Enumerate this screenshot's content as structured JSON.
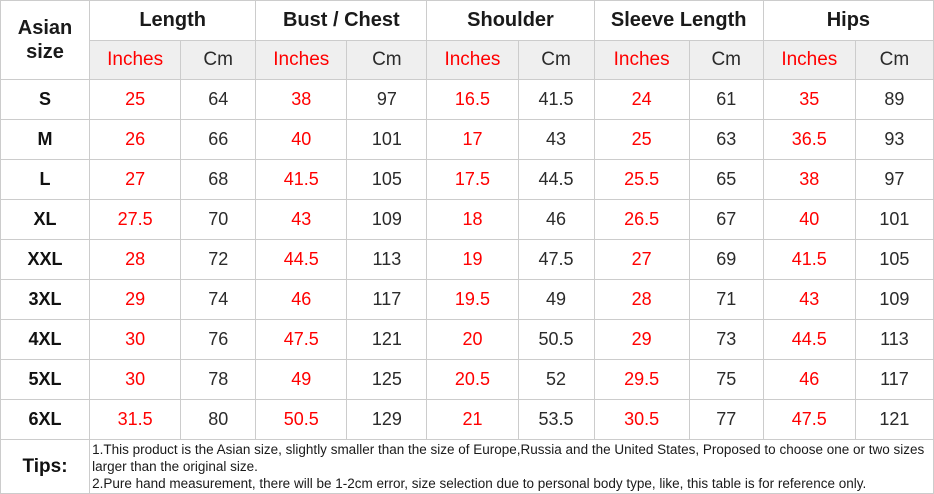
{
  "colors": {
    "accent_red": "#ff0000",
    "header_shade": "#efefef",
    "border": "#cccccc",
    "text_dark": "#1a1a1a"
  },
  "header": {
    "corner": "Asian size",
    "groups": [
      {
        "label": "Length"
      },
      {
        "label": "Bust / Chest"
      },
      {
        "label": "Shoulder"
      },
      {
        "label": "Sleeve Length"
      },
      {
        "label": "Hips"
      }
    ],
    "unit_inches": "Inches",
    "unit_cm": "Cm"
  },
  "rows": [
    {
      "size": "S",
      "values": [
        "25",
        "64",
        "38",
        "97",
        "16.5",
        "41.5",
        "24",
        "61",
        "35",
        "89"
      ]
    },
    {
      "size": "M",
      "values": [
        "26",
        "66",
        "40",
        "101",
        "17",
        "43",
        "25",
        "63",
        "36.5",
        "93"
      ]
    },
    {
      "size": "L",
      "values": [
        "27",
        "68",
        "41.5",
        "105",
        "17.5",
        "44.5",
        "25.5",
        "65",
        "38",
        "97"
      ]
    },
    {
      "size": "XL",
      "values": [
        "27.5",
        "70",
        "43",
        "109",
        "18",
        "46",
        "26.5",
        "67",
        "40",
        "101"
      ]
    },
    {
      "size": "XXL",
      "values": [
        "28",
        "72",
        "44.5",
        "113",
        "19",
        "47.5",
        "27",
        "69",
        "41.5",
        "105"
      ]
    },
    {
      "size": "3XL",
      "values": [
        "29",
        "74",
        "46",
        "117",
        "19.5",
        "49",
        "28",
        "71",
        "43",
        "109"
      ]
    },
    {
      "size": "4XL",
      "values": [
        "30",
        "76",
        "47.5",
        "121",
        "20",
        "50.5",
        "29",
        "73",
        "44.5",
        "113"
      ]
    },
    {
      "size": "5XL",
      "values": [
        "30",
        "78",
        "49",
        "125",
        "20.5",
        "52",
        "29.5",
        "75",
        "46",
        "117"
      ]
    },
    {
      "size": "6XL",
      "values": [
        "31.5",
        "80",
        "50.5",
        "129",
        "21",
        "53.5",
        "30.5",
        "77",
        "47.5",
        "121"
      ]
    }
  ],
  "tips": {
    "label": "Tips:",
    "lines": [
      "1.This product is the Asian size, slightly smaller than the size of Europe,Russia and the United States, Proposed to choose one or two sizes larger than the original size.",
      "2.Pure hand measurement, there will be 1-2cm error, size selection due to personal body type, like, this table is for reference only."
    ]
  },
  "chart_data": {
    "type": "table",
    "title": "",
    "columns": [
      "Asian size",
      "Length (Inches)",
      "Length (Cm)",
      "Bust / Chest (Inches)",
      "Bust / Chest (Cm)",
      "Shoulder (Inches)",
      "Shoulder (Cm)",
      "Sleeve Length (Inches)",
      "Sleeve Length (Cm)",
      "Hips (Inches)",
      "Hips (Cm)"
    ],
    "rows": [
      [
        "S",
        25,
        64,
        38,
        97,
        16.5,
        41.5,
        24,
        61,
        35,
        89
      ],
      [
        "M",
        26,
        66,
        40,
        101,
        17,
        43,
        25,
        63,
        36.5,
        93
      ],
      [
        "L",
        27,
        68,
        41.5,
        105,
        17.5,
        44.5,
        25.5,
        65,
        38,
        97
      ],
      [
        "XL",
        27.5,
        70,
        43,
        109,
        18,
        46,
        26.5,
        67,
        40,
        101
      ],
      [
        "XXL",
        28,
        72,
        44.5,
        113,
        19,
        47.5,
        27,
        69,
        41.5,
        105
      ],
      [
        "3XL",
        29,
        74,
        46,
        117,
        19.5,
        49,
        28,
        71,
        43,
        109
      ],
      [
        "4XL",
        30,
        76,
        47.5,
        121,
        20,
        50.5,
        29,
        73,
        44.5,
        113
      ],
      [
        "5XL",
        30,
        78,
        49,
        125,
        20.5,
        52,
        29.5,
        75,
        46,
        117
      ],
      [
        "6XL",
        31.5,
        80,
        50.5,
        129,
        21,
        53.5,
        30.5,
        77,
        47.5,
        121
      ]
    ],
    "notes": [
      "1.This product is the Asian size, slightly smaller than the size of Europe,Russia and the United States, Proposed to choose one or two sizes larger than the original size.",
      "2.Pure hand measurement, there will be 1-2cm error, size selection due to personal body type, like, this table is for reference only."
    ]
  }
}
